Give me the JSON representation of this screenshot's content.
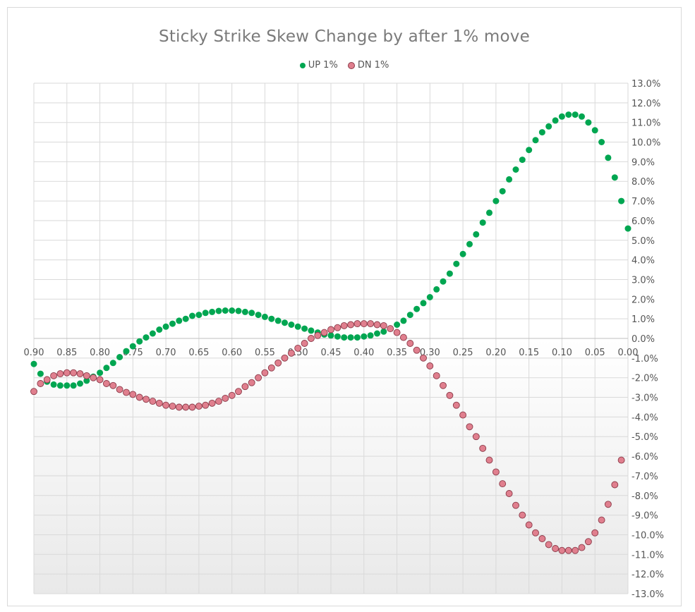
{
  "chart_data": {
    "type": "scatter",
    "title": "Sticky Strike Skew Change by after 1% move",
    "xlabel": "",
    "ylabel": "",
    "x_reversed": true,
    "xlim": [
      0.9,
      0.0
    ],
    "ylim": [
      -13.0,
      13.0
    ],
    "grid": true,
    "legend_position": "top",
    "x_tick_labels": [
      "0.90",
      "0.85",
      "0.80",
      "0.75",
      "0.70",
      "0.65",
      "0.60",
      "0.55",
      "0.50",
      "0.45",
      "0.40",
      "0.35",
      "0.30",
      "0.25",
      "0.20",
      "0.15",
      "0.10",
      "0.05",
      "0.00"
    ],
    "y_tick_labels": [
      "13.0%",
      "12.0%",
      "11.0%",
      "10.0%",
      "9.0%",
      "8.0%",
      "7.0%",
      "6.0%",
      "5.0%",
      "4.0%",
      "3.0%",
      "2.0%",
      "1.0%",
      "0.0%",
      "-1.0%",
      "-2.0%",
      "-3.0%",
      "-4.0%",
      "-5.0%",
      "-6.0%",
      "-7.0%",
      "-8.0%",
      "-9.0%",
      "-10.0%",
      "-11.0%",
      "-12.0%",
      "-13.0%"
    ],
    "series": [
      {
        "name": "UP 1%",
        "color": "#00a651",
        "points": [
          [
            0.9,
            -1.3
          ],
          [
            0.89,
            -1.8
          ],
          [
            0.88,
            -2.2
          ],
          [
            0.87,
            -2.35
          ],
          [
            0.86,
            -2.4
          ],
          [
            0.85,
            -2.4
          ],
          [
            0.84,
            -2.4
          ],
          [
            0.83,
            -2.3
          ],
          [
            0.82,
            -2.15
          ],
          [
            0.81,
            -1.95
          ],
          [
            0.8,
            -1.75
          ],
          [
            0.79,
            -1.5
          ],
          [
            0.78,
            -1.25
          ],
          [
            0.77,
            -0.95
          ],
          [
            0.76,
            -0.65
          ],
          [
            0.75,
            -0.4
          ],
          [
            0.74,
            -0.15
          ],
          [
            0.73,
            0.05
          ],
          [
            0.72,
            0.25
          ],
          [
            0.71,
            0.45
          ],
          [
            0.7,
            0.6
          ],
          [
            0.69,
            0.75
          ],
          [
            0.68,
            0.9
          ],
          [
            0.67,
            1.0
          ],
          [
            0.66,
            1.15
          ],
          [
            0.65,
            1.2
          ],
          [
            0.64,
            1.3
          ],
          [
            0.63,
            1.35
          ],
          [
            0.62,
            1.4
          ],
          [
            0.61,
            1.42
          ],
          [
            0.6,
            1.42
          ],
          [
            0.59,
            1.4
          ],
          [
            0.58,
            1.35
          ],
          [
            0.57,
            1.3
          ],
          [
            0.56,
            1.2
          ],
          [
            0.55,
            1.1
          ],
          [
            0.54,
            1.0
          ],
          [
            0.53,
            0.9
          ],
          [
            0.52,
            0.8
          ],
          [
            0.51,
            0.7
          ],
          [
            0.5,
            0.6
          ],
          [
            0.49,
            0.5
          ],
          [
            0.48,
            0.4
          ],
          [
            0.47,
            0.3
          ],
          [
            0.46,
            0.2
          ],
          [
            0.45,
            0.15
          ],
          [
            0.44,
            0.1
          ],
          [
            0.43,
            0.05
          ],
          [
            0.42,
            0.05
          ],
          [
            0.41,
            0.05
          ],
          [
            0.4,
            0.1
          ],
          [
            0.39,
            0.15
          ],
          [
            0.38,
            0.25
          ],
          [
            0.37,
            0.35
          ],
          [
            0.36,
            0.5
          ],
          [
            0.35,
            0.7
          ],
          [
            0.34,
            0.9
          ],
          [
            0.33,
            1.2
          ],
          [
            0.32,
            1.5
          ],
          [
            0.31,
            1.8
          ],
          [
            0.3,
            2.1
          ],
          [
            0.29,
            2.5
          ],
          [
            0.28,
            2.9
          ],
          [
            0.27,
            3.3
          ],
          [
            0.26,
            3.8
          ],
          [
            0.25,
            4.3
          ],
          [
            0.24,
            4.8
          ],
          [
            0.23,
            5.3
          ],
          [
            0.22,
            5.9
          ],
          [
            0.21,
            6.4
          ],
          [
            0.2,
            7.0
          ],
          [
            0.19,
            7.5
          ],
          [
            0.18,
            8.1
          ],
          [
            0.17,
            8.6
          ],
          [
            0.16,
            9.1
          ],
          [
            0.15,
            9.6
          ],
          [
            0.14,
            10.1
          ],
          [
            0.13,
            10.5
          ],
          [
            0.12,
            10.8
          ],
          [
            0.11,
            11.1
          ],
          [
            0.1,
            11.3
          ],
          [
            0.09,
            11.4
          ],
          [
            0.08,
            11.4
          ],
          [
            0.07,
            11.3
          ],
          [
            0.06,
            11.0
          ],
          [
            0.05,
            10.6
          ],
          [
            0.04,
            10.0
          ],
          [
            0.03,
            9.2
          ],
          [
            0.02,
            8.2
          ],
          [
            0.01,
            7.0
          ],
          [
            0.0,
            5.6
          ]
        ]
      },
      {
        "name": "DN 1%",
        "color": "#e07f8e",
        "points": [
          [
            0.9,
            -2.7
          ],
          [
            0.89,
            -2.3
          ],
          [
            0.88,
            -2.1
          ],
          [
            0.87,
            -1.9
          ],
          [
            0.86,
            -1.8
          ],
          [
            0.85,
            -1.75
          ],
          [
            0.84,
            -1.75
          ],
          [
            0.83,
            -1.8
          ],
          [
            0.82,
            -1.9
          ],
          [
            0.81,
            -2.0
          ],
          [
            0.8,
            -2.1
          ],
          [
            0.79,
            -2.3
          ],
          [
            0.78,
            -2.4
          ],
          [
            0.77,
            -2.6
          ],
          [
            0.76,
            -2.75
          ],
          [
            0.75,
            -2.85
          ],
          [
            0.74,
            -3.0
          ],
          [
            0.73,
            -3.1
          ],
          [
            0.72,
            -3.2
          ],
          [
            0.71,
            -3.3
          ],
          [
            0.7,
            -3.4
          ],
          [
            0.69,
            -3.45
          ],
          [
            0.68,
            -3.5
          ],
          [
            0.67,
            -3.5
          ],
          [
            0.66,
            -3.5
          ],
          [
            0.65,
            -3.45
          ],
          [
            0.64,
            -3.4
          ],
          [
            0.63,
            -3.3
          ],
          [
            0.62,
            -3.2
          ],
          [
            0.61,
            -3.05
          ],
          [
            0.6,
            -2.9
          ],
          [
            0.59,
            -2.7
          ],
          [
            0.58,
            -2.45
          ],
          [
            0.57,
            -2.25
          ],
          [
            0.56,
            -2.0
          ],
          [
            0.55,
            -1.75
          ],
          [
            0.54,
            -1.5
          ],
          [
            0.53,
            -1.25
          ],
          [
            0.52,
            -1.0
          ],
          [
            0.51,
            -0.75
          ],
          [
            0.5,
            -0.5
          ],
          [
            0.49,
            -0.25
          ],
          [
            0.48,
            0.0
          ],
          [
            0.47,
            0.15
          ],
          [
            0.46,
            0.3
          ],
          [
            0.45,
            0.45
          ],
          [
            0.44,
            0.55
          ],
          [
            0.43,
            0.65
          ],
          [
            0.42,
            0.7
          ],
          [
            0.41,
            0.75
          ],
          [
            0.4,
            0.75
          ],
          [
            0.39,
            0.75
          ],
          [
            0.38,
            0.7
          ],
          [
            0.37,
            0.65
          ],
          [
            0.36,
            0.5
          ],
          [
            0.35,
            0.3
          ],
          [
            0.34,
            0.05
          ],
          [
            0.33,
            -0.25
          ],
          [
            0.32,
            -0.6
          ],
          [
            0.31,
            -1.0
          ],
          [
            0.3,
            -1.4
          ],
          [
            0.29,
            -1.9
          ],
          [
            0.28,
            -2.4
          ],
          [
            0.27,
            -2.9
          ],
          [
            0.26,
            -3.4
          ],
          [
            0.25,
            -3.9
          ],
          [
            0.24,
            -4.5
          ],
          [
            0.23,
            -5.0
          ],
          [
            0.22,
            -5.6
          ],
          [
            0.21,
            -6.2
          ],
          [
            0.2,
            -6.8
          ],
          [
            0.19,
            -7.4
          ],
          [
            0.18,
            -7.9
          ],
          [
            0.17,
            -8.5
          ],
          [
            0.16,
            -9.0
          ],
          [
            0.15,
            -9.5
          ],
          [
            0.14,
            -9.9
          ],
          [
            0.13,
            -10.2
          ],
          [
            0.12,
            -10.5
          ],
          [
            0.11,
            -10.7
          ],
          [
            0.1,
            -10.8
          ],
          [
            0.09,
            -10.8
          ],
          [
            0.08,
            -10.8
          ],
          [
            0.07,
            -10.65
          ],
          [
            0.06,
            -10.35
          ],
          [
            0.05,
            -9.9
          ],
          [
            0.04,
            -9.25
          ],
          [
            0.03,
            -8.45
          ],
          [
            0.02,
            -7.45
          ],
          [
            0.01,
            -6.2
          ]
        ]
      }
    ]
  }
}
